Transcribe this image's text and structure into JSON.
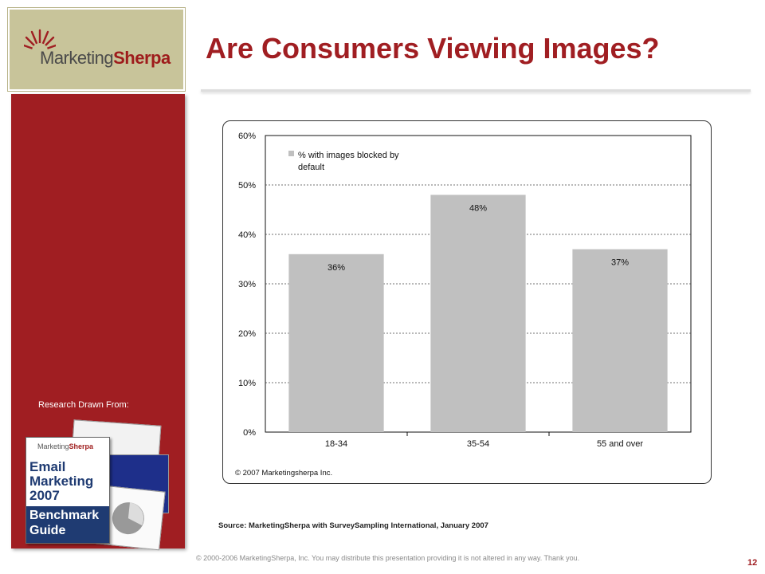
{
  "logo": {
    "word1": "Marketing",
    "word2": "Sherpa"
  },
  "sidebar": {
    "research_label": "Research Drawn From:",
    "book": {
      "logo_word1": "Marketing",
      "logo_word2": "Sherpa",
      "title": "Email\nMarketing\n2007",
      "subtitle": "Benchmark\nGuide"
    }
  },
  "slide": {
    "title": "Are Consumers Viewing Images?",
    "source": "Source: MarketingSherpa with SurveySampling International, January 2007",
    "footer": "© 2000-2006 MarketingSherpa, Inc. You may distribute this presentation providing it is not altered in any way. Thank you.",
    "page_number": "12"
  },
  "chart_data": {
    "type": "bar",
    "categories": [
      "18-34",
      "35-54",
      "55 and over"
    ],
    "series": [
      {
        "name": "% with images blocked by default",
        "values": [
          36,
          48,
          37
        ],
        "labels": [
          "36%",
          "48%",
          "37%"
        ]
      }
    ],
    "ylim": [
      0,
      60
    ],
    "yticks": [
      "0%",
      "10%",
      "20%",
      "30%",
      "40%",
      "50%",
      "60%"
    ],
    "ytick_values": [
      0,
      10,
      20,
      30,
      40,
      50,
      60
    ],
    "legend_lines": [
      "% with images blocked by",
      "default"
    ],
    "legend_position": "top-left",
    "grid": true,
    "copyright": "© 2007 Marketingsherpa Inc.",
    "bar_color": "#c0c0c0"
  }
}
